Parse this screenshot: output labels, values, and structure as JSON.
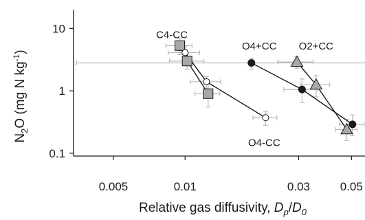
{
  "chart_data": {
    "type": "scatter",
    "title": "",
    "xlabel": {
      "prefix": "Relative gas diffusivity, ",
      "d1": "D",
      "sub1": "p",
      "slash": "/",
      "d2": "D",
      "sub2": "0"
    },
    "ylabel": {
      "pre": "N",
      "sub": "2",
      "mid": "O (mg N kg",
      "sup": "-1",
      "post": ")"
    },
    "x_scale": "log",
    "y_scale": "log",
    "xlim": [
      0.0034,
      0.057
    ],
    "ylim": [
      0.09,
      20
    ],
    "x_ticks": [
      {
        "value": 0.005,
        "label": "0.005"
      },
      {
        "value": 0.01,
        "label": "0.01"
      },
      {
        "value": 0.03,
        "label": "0.03"
      },
      {
        "value": 0.05,
        "label": "0.05"
      }
    ],
    "y_ticks": [
      {
        "value": 0.1,
        "label": "0.1"
      },
      {
        "value": 1,
        "label": "1"
      },
      {
        "value": 10,
        "label": "10"
      }
    ],
    "grid": false,
    "legend": "none",
    "series": [
      {
        "name": "C4-CC",
        "marker": "square",
        "fill": "#a8a8a8",
        "points": [
          {
            "x": 0.0095,
            "y": 5.3,
            "xerr": [
              0.0012,
              0.0012
            ],
            "yerr": [
              1.5,
              1.6
            ]
          },
          {
            "x": 0.0102,
            "y": 3.0,
            "xerr": [
              0.0016,
              0.0018
            ],
            "yerr": [
              0.8,
              0.9
            ]
          },
          {
            "x": 0.0125,
            "y": 0.9,
            "xerr": [
              0.0015,
              0.0015
            ],
            "yerr": [
              0.35,
              0.5
            ]
          }
        ]
      },
      {
        "name": "O4-CC",
        "marker": "circle",
        "fill": "#ffffff",
        "points": [
          {
            "x": 0.01,
            "y": 4.1,
            "xerr": [
              0.0015,
              0.0015
            ],
            "yerr": [
              0.9,
              1.0
            ]
          },
          {
            "x": 0.0123,
            "y": 1.4,
            "xerr": [
              0.0018,
              0.0018
            ],
            "yerr": [
              0.3,
              0.3
            ]
          },
          {
            "x": 0.0218,
            "y": 0.37,
            "xerr": [
              0.0025,
              0.0025
            ],
            "yerr": [
              0.09,
              0.1
            ]
          }
        ]
      },
      {
        "name": "O4+CC",
        "marker": "circle",
        "fill": "#1a1a1a",
        "points": [
          {
            "x": 0.019,
            "y": 2.8,
            "xerr": [
              0.0155,
              0.04
            ],
            "yerr": [
              0.6,
              0.5
            ]
          },
          {
            "x": 0.031,
            "y": 1.05,
            "xerr": [
              0.005,
              0.005
            ],
            "yerr": [
              0.4,
              0.5
            ]
          },
          {
            "x": 0.0505,
            "y": 0.29,
            "xerr": [
              0.006,
              0.006
            ],
            "yerr": [
              0.1,
              0.12
            ]
          }
        ]
      },
      {
        "name": "O2+CC",
        "marker": "triangle",
        "fill": "#a8a8a8",
        "points": [
          {
            "x": 0.0295,
            "y": 2.9,
            "xerr": [
              0.005,
              0.005
            ],
            "yerr": [
              0.6,
              0.6
            ]
          },
          {
            "x": 0.0355,
            "y": 1.25,
            "xerr": [
              0.005,
              0.005
            ],
            "yerr": [
              0.45,
              0.5
            ]
          },
          {
            "x": 0.0478,
            "y": 0.24,
            "xerr": [
              0.005,
              0.005
            ],
            "yerr": [
              0.08,
              0.11
            ]
          }
        ]
      }
    ],
    "annotations": [
      {
        "text": "C4-CC",
        "x": 0.0088,
        "y": 7.0,
        "anchor": "middle"
      },
      {
        "text": "O4+CC",
        "x": 0.0205,
        "y": 4.6,
        "anchor": "middle"
      },
      {
        "text": "O2+CC",
        "x": 0.0355,
        "y": 4.6,
        "anchor": "middle"
      },
      {
        "text": "O4-CC",
        "x": 0.0215,
        "y": 0.13,
        "anchor": "middle"
      }
    ]
  }
}
